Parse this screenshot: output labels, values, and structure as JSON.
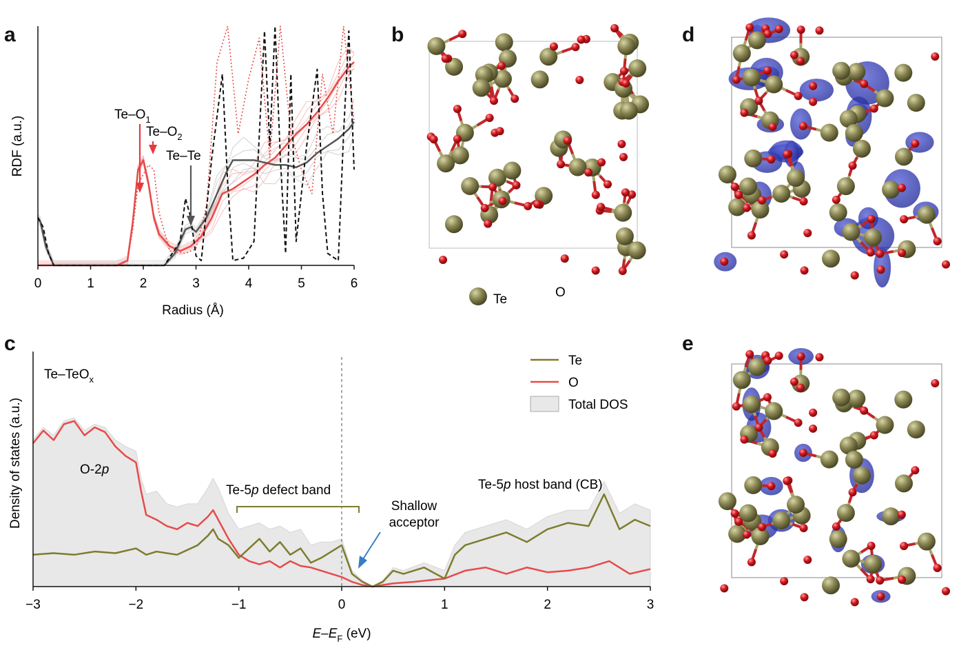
{
  "panels": {
    "a": "a",
    "b": "b",
    "c": "c",
    "d": "d",
    "e": "e"
  },
  "chart_data": [
    {
      "panel": "a",
      "type": "line",
      "xlabel": "Radius (Å)",
      "ylabel": "RDF (a.u.)",
      "xlim": [
        0,
        6
      ],
      "xticks": [
        "0",
        "1",
        "2",
        "3",
        "4",
        "5",
        "6"
      ],
      "annotations": [
        {
          "text": "Te–O",
          "sub": "1",
          "color": "#e8383d"
        },
        {
          "text": "Te–O",
          "sub": "2",
          "color": "#e8383d"
        },
        {
          "text": "Te–Te",
          "sub": "",
          "color": "#555555"
        }
      ],
      "series": [
        {
          "style": "solid",
          "color": "#e84a4a",
          "x": [
            0.0,
            0.5,
            1.0,
            1.5,
            1.7,
            1.8,
            1.9,
            2.0,
            2.1,
            2.2,
            2.3,
            2.5,
            2.7,
            2.9,
            3.1,
            3.3,
            3.5,
            3.7,
            3.9,
            4.1,
            4.3,
            4.5,
            4.7,
            4.9,
            5.1,
            5.3,
            5.5,
            5.7,
            5.9,
            6.0
          ],
          "y": [
            0,
            0,
            0,
            0,
            0.02,
            0.18,
            0.4,
            0.44,
            0.34,
            0.2,
            0.13,
            0.08,
            0.06,
            0.08,
            0.12,
            0.2,
            0.3,
            0.32,
            0.35,
            0.38,
            0.42,
            0.45,
            0.5,
            0.55,
            0.59,
            0.64,
            0.7,
            0.77,
            0.83,
            0.85
          ]
        },
        {
          "style": "solid",
          "color": "#555555",
          "x": [
            0.0,
            0.05,
            0.15,
            0.3,
            0.5,
            1.0,
            1.5,
            2.0,
            2.4,
            2.6,
            2.8,
            2.9,
            3.0,
            3.2,
            3.4,
            3.6,
            3.7,
            3.9,
            4.1,
            4.3,
            4.5,
            4.7,
            4.9,
            5.1,
            5.3,
            5.5,
            5.7,
            5.9,
            6.0
          ],
          "y": [
            0.2,
            0.18,
            0.08,
            0,
            0,
            0,
            0,
            0,
            0,
            0.05,
            0.15,
            0.16,
            0.14,
            0.2,
            0.3,
            0.4,
            0.44,
            0.44,
            0.44,
            0.43,
            0.42,
            0.42,
            0.41,
            0.43,
            0.47,
            0.5,
            0.53,
            0.57,
            0.6
          ]
        },
        {
          "style": "dotted",
          "color": "#e84a4a",
          "x": [
            1.7,
            1.8,
            1.9,
            2.0,
            2.1,
            2.2,
            2.3,
            2.5,
            2.8,
            3.0,
            3.2,
            3.4,
            3.6,
            3.8,
            4.0,
            4.2,
            4.4,
            4.6,
            4.8,
            5.0,
            5.2,
            5.4,
            5.6,
            5.8,
            6.0
          ],
          "y": [
            0.02,
            0.15,
            0.34,
            0.38,
            0.42,
            0.4,
            0.22,
            0.06,
            0.05,
            0.07,
            0.25,
            0.85,
            1.0,
            0.55,
            0.78,
            0.95,
            0.45,
            1.0,
            0.55,
            0.4,
            0.3,
            0.8,
            0.55,
            1.0,
            0.6
          ]
        },
        {
          "style": "dashed",
          "color": "#111111",
          "x": [
            0.0,
            0.1,
            0.2,
            0.3,
            0.5,
            2.4,
            2.7,
            2.8,
            2.9,
            3.0,
            3.1,
            3.3,
            3.5,
            3.6,
            3.7,
            3.9,
            4.1,
            4.3,
            4.4,
            4.5,
            4.6,
            4.7,
            4.8,
            4.9,
            5.1,
            5.3,
            5.4,
            5.5,
            5.7,
            5.8,
            5.9,
            6.0
          ],
          "y": [
            0.2,
            0.16,
            0.05,
            0,
            0,
            0,
            0.1,
            0.28,
            0.2,
            0.04,
            0.02,
            0.45,
            0.8,
            0.35,
            0.02,
            0.03,
            0.1,
            0.98,
            0.5,
            1.0,
            0.45,
            0.05,
            0.8,
            0.1,
            0.5,
            0.82,
            0.3,
            0.05,
            0.02,
            0.55,
            0.98,
            0.4
          ]
        }
      ]
    },
    {
      "panel": "c",
      "type": "area",
      "title": "Te–TeO",
      "title_sub": "x",
      "xlabel_main": "E–E",
      "xlabel_sub": "F",
      "xlabel_unit": " (eV)",
      "ylabel": "Density of states (a.u.)",
      "xlim": [
        -3,
        3
      ],
      "xticks": [
        "−3",
        "−2",
        "−1",
        "0",
        "1",
        "2",
        "3"
      ],
      "legend": [
        {
          "label": "Te",
          "color": "#7c7c2e",
          "kind": "line"
        },
        {
          "label": "O",
          "color": "#e84a4a",
          "kind": "line"
        },
        {
          "label": "Total DOS",
          "color": "#e8e8e8",
          "kind": "box"
        }
      ],
      "annotations": {
        "o2p_main": "O-2",
        "o2p_ital": "p",
        "defect_main": "Te-5",
        "defect_ital": "p",
        "defect_rest": " defect band",
        "host_main": "Te-5",
        "host_ital": "p",
        "host_rest": " host band (CB)",
        "acceptor_1": "Shallow",
        "acceptor_2": "acceptor"
      },
      "series": [
        {
          "name": "O",
          "color": "#e84a4a",
          "x": [
            -3.0,
            -2.9,
            -2.8,
            -2.7,
            -2.6,
            -2.5,
            -2.4,
            -2.3,
            -2.2,
            -2.1,
            -2.0,
            -1.95,
            -1.9,
            -1.8,
            -1.7,
            -1.6,
            -1.5,
            -1.4,
            -1.3,
            -1.25,
            -1.2,
            -1.1,
            -1.0,
            -0.9,
            -0.8,
            -0.7,
            -0.6,
            -0.5,
            -0.4,
            -0.3,
            -0.2,
            -0.1,
            0.0,
            0.1,
            0.2,
            0.3,
            0.5,
            0.7,
            1.0,
            1.2,
            1.4,
            1.6,
            1.8,
            2.0,
            2.2,
            2.4,
            2.6,
            2.8,
            3.0
          ],
          "y": [
            0.9,
            0.98,
            0.92,
            1.02,
            1.04,
            0.95,
            1.0,
            0.97,
            0.88,
            0.82,
            0.78,
            0.6,
            0.45,
            0.42,
            0.38,
            0.36,
            0.4,
            0.38,
            0.44,
            0.48,
            0.42,
            0.3,
            0.2,
            0.16,
            0.14,
            0.16,
            0.12,
            0.16,
            0.13,
            0.12,
            0.1,
            0.08,
            0.06,
            0.03,
            0.01,
            0.0,
            0.02,
            0.03,
            0.05,
            0.1,
            0.12,
            0.08,
            0.12,
            0.09,
            0.1,
            0.12,
            0.16,
            0.08,
            0.11
          ]
        },
        {
          "name": "Te",
          "color": "#7c7c2e",
          "x": [
            -3.0,
            -2.8,
            -2.6,
            -2.4,
            -2.2,
            -2.0,
            -1.9,
            -1.8,
            -1.6,
            -1.4,
            -1.3,
            -1.25,
            -1.2,
            -1.1,
            -1.0,
            -0.9,
            -0.8,
            -0.7,
            -0.6,
            -0.5,
            -0.4,
            -0.3,
            -0.2,
            -0.1,
            0.0,
            0.1,
            0.2,
            0.3,
            0.4,
            0.5,
            0.6,
            0.8,
            1.0,
            1.1,
            1.2,
            1.4,
            1.6,
            1.8,
            2.0,
            2.2,
            2.4,
            2.55,
            2.7,
            2.85,
            3.0
          ],
          "y": [
            0.2,
            0.21,
            0.2,
            0.22,
            0.21,
            0.24,
            0.2,
            0.22,
            0.2,
            0.26,
            0.32,
            0.36,
            0.3,
            0.26,
            0.18,
            0.24,
            0.3,
            0.22,
            0.28,
            0.2,
            0.24,
            0.15,
            0.18,
            0.22,
            0.26,
            0.08,
            0.03,
            0.0,
            0.03,
            0.1,
            0.08,
            0.12,
            0.05,
            0.2,
            0.26,
            0.3,
            0.34,
            0.28,
            0.36,
            0.4,
            0.38,
            0.58,
            0.36,
            0.42,
            0.38
          ]
        },
        {
          "name": "Total DOS",
          "color": "#e8e8e8",
          "x": [
            -3.0,
            -2.9,
            -2.8,
            -2.7,
            -2.6,
            -2.5,
            -2.4,
            -2.3,
            -2.2,
            -2.1,
            -2.0,
            -1.95,
            -1.9,
            -1.8,
            -1.7,
            -1.6,
            -1.5,
            -1.4,
            -1.3,
            -1.25,
            -1.2,
            -1.1,
            -1.0,
            -0.9,
            -0.8,
            -0.7,
            -0.6,
            -0.5,
            -0.4,
            -0.3,
            -0.2,
            -0.1,
            0.0,
            0.1,
            0.2,
            0.3,
            0.4,
            0.5,
            0.6,
            0.8,
            1.0,
            1.1,
            1.2,
            1.4,
            1.6,
            1.8,
            2.0,
            2.2,
            2.4,
            2.55,
            2.7,
            2.85,
            3.0
          ],
          "y": [
            0.92,
            1.0,
            0.95,
            1.04,
            1.06,
            0.98,
            1.02,
            1.0,
            0.92,
            0.88,
            0.85,
            0.68,
            0.58,
            0.6,
            0.52,
            0.5,
            0.52,
            0.52,
            0.62,
            0.68,
            0.62,
            0.46,
            0.36,
            0.38,
            0.4,
            0.36,
            0.38,
            0.34,
            0.36,
            0.26,
            0.28,
            0.28,
            0.3,
            0.1,
            0.04,
            0.0,
            0.04,
            0.12,
            0.1,
            0.15,
            0.1,
            0.26,
            0.34,
            0.38,
            0.42,
            0.36,
            0.44,
            0.48,
            0.48,
            0.66,
            0.46,
            0.52,
            0.48
          ]
        }
      ]
    }
  ],
  "structure_labels": {
    "te": "Te",
    "o": "O"
  }
}
